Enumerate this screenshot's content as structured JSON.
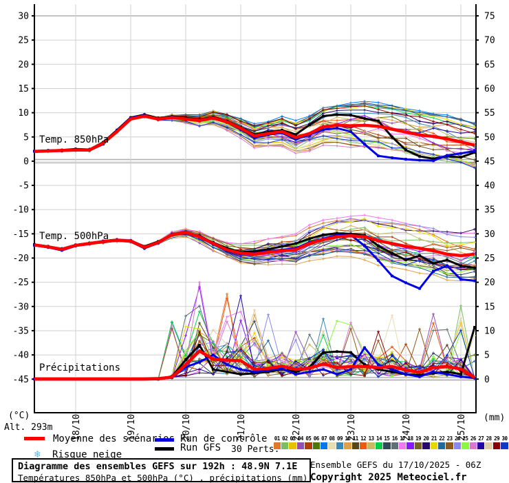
{
  "meta": {
    "left_unit": "(°C)",
    "right_unit": "(mm)",
    "altitude_label": "Alt. 293m"
  },
  "legend": {
    "mean_label": "Moyenne des scénarios",
    "control_label": "Run de contrôle",
    "gfs_label": "Run GFS",
    "perts_label": "30 Perts.",
    "snow_label": "Risque neige",
    "snowflake_icon": "❄"
  },
  "footer": {
    "title_bold": "Diagramme des ensembles GEFS sur 192h : 48.9N 7.1E",
    "title_sub": "Températures 850hPa et 500hPa (°C) , précipitations (mm)",
    "run_info": "Ensemble GEFS du 17/10/2025 - 06Z",
    "copyright": "Copyright 2025 Meteociel.fr"
  },
  "colors": {
    "mean": "#ff0000",
    "control": "#0000e0",
    "gfs": "#000000",
    "grid": "#d0d0d0",
    "grid_top": "#c4c4c4",
    "grid_zero": "#a8a8a8",
    "axis": "#000000",
    "snowflake": "#62b8ea"
  },
  "pert_ids": [
    "01",
    "02",
    "03",
    "04",
    "05",
    "06",
    "07",
    "08",
    "09",
    "10",
    "11",
    "12",
    "13",
    "14",
    "15",
    "16",
    "17",
    "18",
    "19",
    "20",
    "21",
    "22",
    "23",
    "24",
    "25",
    "26",
    "27",
    "28",
    "29",
    "30"
  ],
  "pert_colors": [
    "#e07828",
    "#78c060",
    "#e8c000",
    "#9050b8",
    "#b04000",
    "#507800",
    "#0078f8",
    "#e8dcb0",
    "#3888b8",
    "#e0a048",
    "#584818",
    "#f05818",
    "#c8b868",
    "#00d048",
    "#304858",
    "#607078",
    "#f078f0",
    "#8818f8",
    "#786028",
    "#280868",
    "#e8d800",
    "#2068a0",
    "#905818",
    "#8888f0",
    "#88f838",
    "#d878d0",
    "#2008a0",
    "#e0d0a8",
    "#880000",
    "#1038c8"
  ],
  "chart_data": {
    "type": "line",
    "title": "Diagramme des ensembles GEFS sur 192h : 48.9N 7.1E",
    "time_axis": {
      "start": "17/10 06Z",
      "end": "25/10 06Z",
      "step_hours": 6,
      "n_points": 33,
      "day_labels": [
        "18/10",
        "19/10",
        "20/10",
        "21/10",
        "22/10",
        "23/10",
        "24/10",
        "25/10"
      ]
    },
    "left_axis": {
      "unit": "°C",
      "ticks": [
        30,
        25,
        20,
        15,
        10,
        5,
        0,
        -5,
        -10,
        -15,
        -20,
        -25,
        -30,
        -35,
        -40,
        -45
      ],
      "range": [
        -45,
        30
      ]
    },
    "right_axis": {
      "unit": "mm",
      "ticks": [
        75,
        70,
        65,
        60,
        55,
        50,
        45,
        40,
        35,
        30,
        25,
        20,
        15,
        10,
        5,
        0
      ],
      "range": [
        0,
        75
      ]
    },
    "n_members": 30,
    "panels": [
      {
        "key": "t850",
        "label": "Temp. 850hPa",
        "axis": "left",
        "mean": [
          2.0,
          2.1,
          2.2,
          2.3,
          2.3,
          3.7,
          6.1,
          8.7,
          9.3,
          8.7,
          9.0,
          8.7,
          8.4,
          8.9,
          8.1,
          6.8,
          5.2,
          5.7,
          6.1,
          4.9,
          5.7,
          7.1,
          7.4,
          7.3,
          7.4,
          7.2,
          6.6,
          6.0,
          5.4,
          5.1,
          4.6,
          4.0,
          3.3
        ],
        "control": [
          2.0,
          2.2,
          2.1,
          2.4,
          2.2,
          3.5,
          6.3,
          8.9,
          9.5,
          8.6,
          9.1,
          8.6,
          8.3,
          9.0,
          8.0,
          6.6,
          4.8,
          5.5,
          5.8,
          4.5,
          5.5,
          6.5,
          6.8,
          6.1,
          3.5,
          1.1,
          0.7,
          0.4,
          0.2,
          0.1,
          1.2,
          1.6,
          2.1
        ],
        "gfs": [
          2.1,
          2.2,
          2.3,
          2.5,
          2.4,
          3.9,
          6.4,
          9.0,
          9.6,
          8.9,
          9.2,
          8.9,
          8.6,
          9.1,
          8.3,
          7.0,
          5.5,
          6.0,
          6.4,
          5.5,
          7.5,
          9.3,
          9.6,
          9.5,
          8.8,
          8.3,
          5.0,
          2.3,
          1.0,
          0.5,
          1.0,
          0.8,
          1.8
        ],
        "spread": {
          "start": 0.35,
          "growth": 0.3,
          "max": 4.8
        }
      },
      {
        "key": "t500",
        "label": "Temp. 500hPa",
        "axis": "left",
        "mean": [
          -17.3,
          -17.7,
          -18.2,
          -17.4,
          -17.0,
          -16.6,
          -16.3,
          -16.5,
          -17.8,
          -16.8,
          -15.2,
          -14.7,
          -15.6,
          -17.0,
          -18.3,
          -19.0,
          -19.2,
          -18.8,
          -18.5,
          -18.3,
          -17.0,
          -16.2,
          -15.6,
          -15.4,
          -15.6,
          -16.4,
          -17.0,
          -17.6,
          -18.0,
          -18.5,
          -19.2,
          -19.5,
          -19.2
        ],
        "control": [
          -17.4,
          -17.8,
          -18.4,
          -17.5,
          -17.1,
          -16.5,
          -16.2,
          -16.6,
          -18.0,
          -16.9,
          -15.1,
          -14.8,
          -15.7,
          -17.2,
          -18.5,
          -19.2,
          -19.0,
          -18.6,
          -18.3,
          -18.0,
          -16.8,
          -16.0,
          -15.3,
          -15.2,
          -17.5,
          -20.5,
          -23.7,
          -25.1,
          -26.3,
          -22.7,
          -21.6,
          -24.4,
          -24.7
        ],
        "gfs": [
          -17.2,
          -17.6,
          -18.1,
          -17.3,
          -16.9,
          -16.7,
          -16.4,
          -16.4,
          -17.6,
          -16.6,
          -15.3,
          -14.6,
          -15.5,
          -16.8,
          -18.0,
          -18.8,
          -18.6,
          -18.2,
          -17.6,
          -17.0,
          -16.0,
          -15.2,
          -14.9,
          -15.0,
          -15.3,
          -17.5,
          -19.0,
          -20.4,
          -19.5,
          -21.1,
          -20.4,
          -21.6,
          -22.0
        ],
        "spread": {
          "start": 0.4,
          "growth": 0.32,
          "max": 5.5
        }
      },
      {
        "key": "prcp",
        "label": "Précipitations",
        "axis": "right",
        "mean": [
          0,
          0,
          0,
          0,
          0,
          0,
          0,
          0,
          0,
          0.1,
          0.4,
          3.0,
          5.8,
          4.1,
          3.9,
          3.8,
          2.0,
          2.2,
          2.7,
          2.0,
          2.3,
          3.1,
          2.4,
          2.6,
          2.6,
          2.4,
          2.6,
          1.9,
          1.4,
          2.4,
          2.6,
          2.1,
          0.3
        ],
        "control": [
          0,
          0,
          0,
          0,
          0,
          0,
          0,
          0,
          0,
          0,
          0.3,
          2.5,
          3.5,
          5.0,
          3.0,
          2.0,
          1.5,
          1.8,
          2.2,
          1.0,
          1.5,
          2.0,
          1.0,
          2.0,
          6.5,
          3.0,
          2.0,
          1.0,
          0.5,
          1.5,
          1.0,
          0.5,
          0.2
        ],
        "gfs": [
          0,
          0,
          0,
          0,
          0,
          0,
          0,
          0,
          0,
          0,
          0.5,
          4.0,
          7.0,
          2.0,
          1.5,
          1.0,
          1.2,
          1.5,
          2.0,
          1.5,
          2.5,
          5.5,
          5.7,
          5.5,
          3.0,
          2.0,
          1.5,
          1.0,
          0.8,
          1.2,
          1.5,
          1.0,
          10.7
        ],
        "spike": {
          "member": 18,
          "index": 12,
          "value": 19.0,
          "prev_value": 9.0
        }
      }
    ]
  }
}
